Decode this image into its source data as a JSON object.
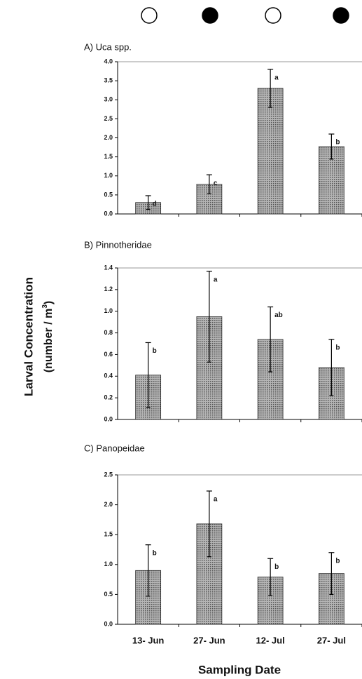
{
  "y_label": "Larval Concentration",
  "y_unit": [
    "(number / m",
    "3",
    ")"
  ],
  "x_label": "Sampling Date",
  "chart_data": [
    {
      "type": "bar",
      "title": "A) Uca spp.",
      "values": [
        0.3,
        0.78,
        3.3,
        1.77
      ],
      "errors": [
        0.18,
        0.25,
        0.5,
        0.33
      ],
      "labels": [
        "d",
        "c",
        "a",
        "b"
      ],
      "color": "#8a8a8a",
      "ylim": [
        0,
        4
      ],
      "yticks": [
        {
          "value": 0,
          "label": "0.0"
        },
        0.5,
        {
          "value": 1,
          "label": "1.0"
        },
        1.5,
        {
          "value": 2,
          "label": "2.0"
        },
        2.5,
        {
          "value": 3,
          "label": "3.0"
        },
        3.5,
        {
          "value": 4,
          "label": "4.0"
        }
      ]
    },
    {
      "type": "bar",
      "title": "B) Pinnotheridae",
      "values": [
        0.41,
        0.95,
        0.74,
        0.48
      ],
      "errors": [
        0.3,
        0.42,
        0.3,
        0.26
      ],
      "labels": [
        "b",
        "a",
        "ab",
        "b"
      ],
      "color": "#8a8a8a",
      "ylim": [
        0,
        1.4
      ],
      "yticks": [
        {
          "value": 0,
          "label": "0.0"
        },
        0.2,
        0.4,
        0.6,
        0.8,
        {
          "value": 1,
          "label": "1.0"
        },
        1.2,
        1.4
      ]
    },
    {
      "type": "bar",
      "title": "C) Panopeidae",
      "categories": [
        "13- Jun",
        "27- Jun",
        "12- Jul",
        "27- Jul"
      ],
      "values": [
        0.9,
        1.68,
        0.79,
        0.85
      ],
      "errors": [
        0.43,
        0.55,
        0.31,
        0.35
      ],
      "labels": [
        "b",
        "a",
        "b",
        "b"
      ],
      "color": "#8a8a8a",
      "ylim": [
        0,
        2.5
      ],
      "yticks": [
        {
          "value": 0,
          "label": "0.0"
        },
        0.5,
        {
          "value": 1,
          "label": "1.0"
        },
        1.5,
        {
          "value": 2,
          "label": "2.0"
        },
        2.5
      ]
    }
  ]
}
